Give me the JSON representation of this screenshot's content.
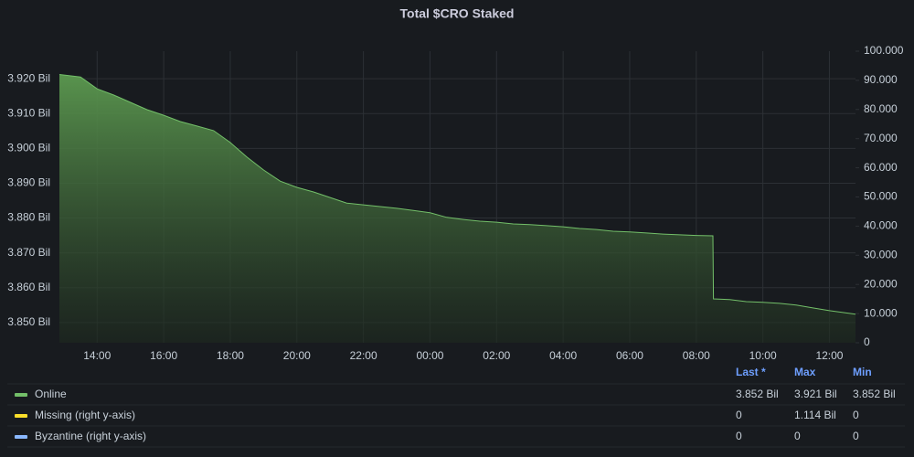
{
  "chart_data": {
    "type": "area",
    "title": "Total $CRO Staked",
    "x": [
      "12:52",
      "13:30",
      "14:00",
      "14:30",
      "15:00",
      "15:30",
      "16:00",
      "16:30",
      "17:00",
      "17:30",
      "18:00",
      "18:30",
      "19:00",
      "19:30",
      "20:00",
      "20:30",
      "21:00",
      "21:30",
      "22:00",
      "22:30",
      "23:00",
      "23:30",
      "00:00",
      "00:30",
      "01:00",
      "01:30",
      "02:00",
      "02:30",
      "03:00",
      "03:30",
      "04:00",
      "04:30",
      "05:00",
      "05:30",
      "06:00",
      "06:30",
      "07:00",
      "07:30",
      "08:00",
      "08:30",
      "08:31",
      "09:00",
      "09:30",
      "10:00",
      "10:30",
      "11:00",
      "11:30",
      "12:00",
      "12:47"
    ],
    "series": [
      {
        "color": "#73bf69",
        "values": [
          3.9212,
          3.9205,
          3.9171,
          3.9153,
          3.9132,
          3.9111,
          3.9095,
          3.9077,
          3.9064,
          3.9051,
          3.9017,
          3.8975,
          3.8938,
          3.8906,
          3.8888,
          3.8875,
          3.8859,
          3.8843,
          3.8838,
          3.8833,
          3.8828,
          3.8822,
          3.8815,
          3.8802,
          3.8796,
          3.8791,
          3.8788,
          3.8783,
          3.8781,
          3.8778,
          3.8775,
          3.877,
          3.8767,
          3.8762,
          3.876,
          3.8757,
          3.8754,
          3.8752,
          3.875,
          3.8749,
          3.8568,
          3.8566,
          3.856,
          3.8558,
          3.8555,
          3.855,
          3.8542,
          3.8534,
          3.8524
        ]
      }
    ],
    "xlim": [
      "12:52",
      "12:47"
    ],
    "xticks": [
      "14:00",
      "16:00",
      "18:00",
      "20:00",
      "22:00",
      "00:00",
      "02:00",
      "04:00",
      "06:00",
      "08:00",
      "10:00",
      "12:00"
    ],
    "ylim": [
      3.8442,
      3.9279
    ],
    "yticks": [
      {
        "value": 3.85,
        "label": "3.850 Bil"
      },
      {
        "value": 3.86,
        "label": "3.860 Bil"
      },
      {
        "value": 3.87,
        "label": "3.870 Bil"
      },
      {
        "value": 3.88,
        "label": "3.880 Bil"
      },
      {
        "value": 3.89,
        "label": "3.890 Bil"
      },
      {
        "value": 3.9,
        "label": "3.900 Bil"
      },
      {
        "value": 3.91,
        "label": "3.910 Bil"
      },
      {
        "value": 3.92,
        "label": "3.920 Bil"
      }
    ],
    "y2lim": [
      0,
      100
    ],
    "y2ticks": [
      0,
      {
        "value": 10,
        "label": "10.000"
      },
      {
        "value": 20,
        "label": "20.000"
      },
      {
        "value": 30,
        "label": "30.000"
      },
      {
        "value": 40,
        "label": "40.000"
      },
      {
        "value": 50,
        "label": "50.000"
      },
      {
        "value": 60,
        "label": "60.000"
      },
      {
        "value": 70,
        "label": "70.000"
      },
      {
        "value": 80,
        "label": "80.000"
      },
      {
        "value": 90,
        "label": "90.000"
      },
      {
        "value": 100,
        "label": "100.000"
      }
    ],
    "grid": true,
    "legend": {
      "columns": [
        "Last *",
        "Max",
        "Min"
      ],
      "rows": [
        {
          "name": "Online",
          "color": "#73bf69",
          "stats": [
            "3.852 Bil",
            "3.921 Bil",
            "3.852 Bil"
          ]
        },
        {
          "name": "Missing (right y-axis)",
          "color": "#fade2a",
          "stats": [
            "0",
            "1.114 Bil",
            "0"
          ]
        },
        {
          "name": "Byzantine (right y-axis)",
          "color": "#8ab8ff",
          "stats": [
            "0",
            "0",
            "0"
          ]
        }
      ]
    }
  }
}
